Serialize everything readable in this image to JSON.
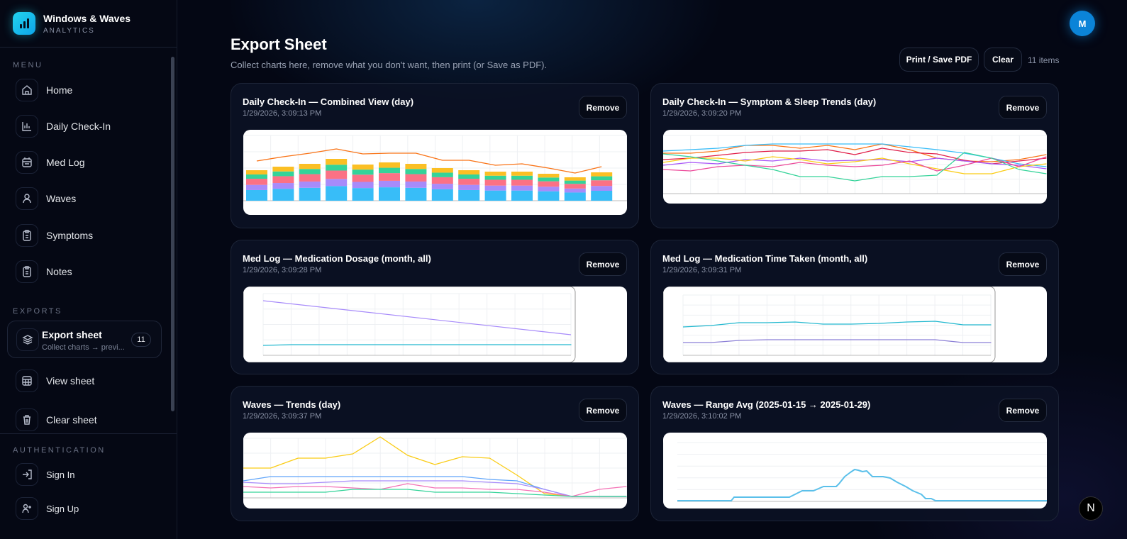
{
  "brand": {
    "title": "Windows & Waves",
    "subtitle": "ANALYTICS"
  },
  "sidebar": {
    "menu_label": "MENU",
    "menu": [
      {
        "label": "Home",
        "icon": "home-icon"
      },
      {
        "label": "Daily Check-In",
        "icon": "bar-chart-icon"
      },
      {
        "label": "Med Log",
        "icon": "calendar-icon"
      },
      {
        "label": "Waves",
        "icon": "user-icon"
      },
      {
        "label": "Symptoms",
        "icon": "clipboard-icon"
      },
      {
        "label": "Notes",
        "icon": "clipboard-icon"
      }
    ],
    "exports_label": "EXPORTS",
    "export_sheet": {
      "title": "Export sheet",
      "subtitle": "Collect charts → previ...",
      "badge": "11"
    },
    "exports": [
      {
        "label": "View sheet",
        "icon": "table-icon"
      },
      {
        "label": "Clear sheet",
        "icon": "trash-icon"
      }
    ],
    "auth_label": "AUTHENTICATION",
    "auth": [
      {
        "label": "Sign In",
        "icon": "sign-in-icon"
      },
      {
        "label": "Sign Up",
        "icon": "user-plus-icon"
      }
    ]
  },
  "header": {
    "title": "Export Sheet",
    "subtitle": "Collect charts here, remove what you don't want, then print (or Save as PDF).",
    "print_label": "Print / Save PDF",
    "clear_label": "Clear",
    "count": "11 items",
    "avatar": "M"
  },
  "remove_label": "Remove",
  "cards": [
    {
      "title": "Daily Check-In — Combined View (day)",
      "date": "1/29/2026, 3:09:13 PM"
    },
    {
      "title": "Daily Check-In — Symptom & Sleep Trends (day)",
      "date": "1/29/2026, 3:09:20 PM"
    },
    {
      "title": "Med Log — Medication Dosage (month, all)",
      "date": "1/29/2026, 3:09:28 PM"
    },
    {
      "title": "Med Log — Medication Time Taken (month, all)",
      "date": "1/29/2026, 3:09:31 PM"
    },
    {
      "title": "Waves — Trends (day)",
      "date": "1/29/2026, 3:09:37 PM"
    },
    {
      "title": "Waves — Range Avg (2025-01-15 → 2025-01-29)",
      "date": "1/29/2026, 3:10:02 PM"
    }
  ],
  "colors": {
    "accent": "#22d3ee",
    "avatar": "#0b84d8",
    "bars": [
      "#38bdf8",
      "#a78bfa",
      "#fb7185",
      "#34d399",
      "#fbbf24"
    ],
    "line": "#f97316"
  },
  "next_badge": "N"
}
